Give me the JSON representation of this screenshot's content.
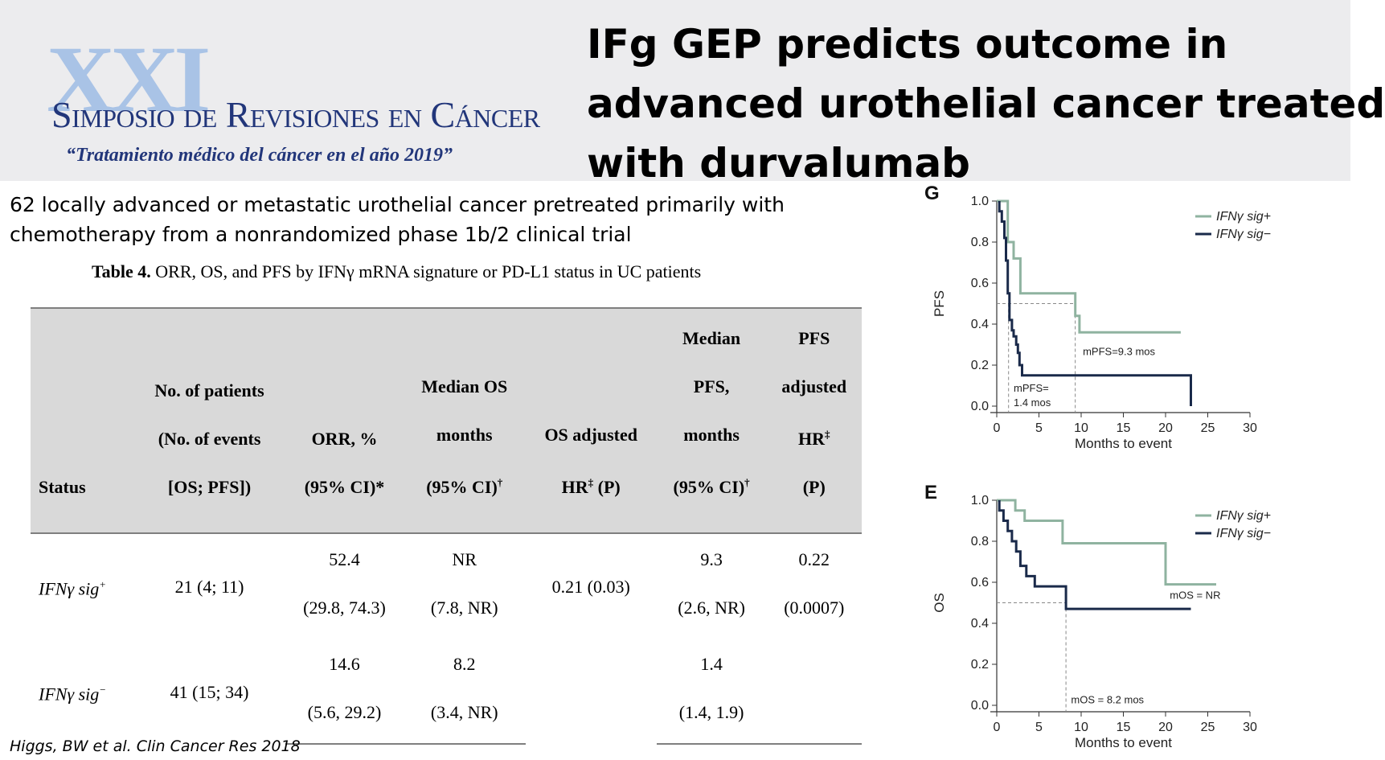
{
  "header": {
    "logo_big": "XXI",
    "logo_main": "Simposio de Revisiones en Cáncer",
    "logo_sub": "“Tratamiento médico del cáncer en el año 2019”",
    "title_lines": [
      "IFg GEP predicts outcome in",
      "advanced urothelial cancer treated",
      "with durvalumab"
    ]
  },
  "intro": {
    "lines": [
      "62 locally advanced or metastatic urothelial cancer pretreated primarily with",
      "chemotherapy  from a nonrandomized phase 1b/2 clinical trial"
    ]
  },
  "table": {
    "caption_bold": "Table 4.",
    "caption_rest": " ORR, OS, and PFS by IFNγ mRNA signature or PD-L1 status in UC patients",
    "headers": [
      {
        "lines": [
          "Status"
        ]
      },
      {
        "lines": [
          "No. of patients",
          "(No. of events",
          "[OS; PFS])"
        ]
      },
      {
        "lines": [
          "ORR, %",
          "(95% CI)*"
        ]
      },
      {
        "lines": [
          "Median OS",
          "months",
          "(95% CI)†"
        ]
      },
      {
        "lines": [
          "OS adjusted",
          "HR‡ (P)"
        ]
      },
      {
        "lines": [
          "Median",
          "PFS,",
          "months",
          "(95% CI)†"
        ]
      },
      {
        "lines": [
          "PFS",
          "adjusted",
          "HR‡",
          "(P)"
        ]
      }
    ],
    "rows": [
      {
        "status": "IFNγ sig",
        "status_sup": "+",
        "patients": "21 (4; 11)",
        "orr": "52.4",
        "orr_ci": "(29.8, 74.3)",
        "os": "NR",
        "os_ci": "(7.8, NR)",
        "os_hr": "0.21 (0.03)",
        "pfs": "9.3",
        "pfs_ci": "(2.6, NR)",
        "pfs_hr": "0.22",
        "pfs_p": "(0.0007)"
      },
      {
        "status": "IFNγ sig",
        "status_sup": "−",
        "patients": "41 (15; 34)",
        "orr": "14.6",
        "orr_ci": "(5.6, 29.2)",
        "os": "8.2",
        "os_ci": "(3.4, NR)",
        "os_hr": "",
        "pfs": "1.4",
        "pfs_ci": "(1.4, 1.9)",
        "pfs_hr": "",
        "pfs_p": ""
      }
    ]
  },
  "citation": "Higgs, BW et al. Clin Cancer Res 2018",
  "colors": {
    "sig_plus": "#8fb3a0",
    "sig_minus": "#1a2a4a",
    "header_bg": "#ececee",
    "table_header_bg": "#d9d9d9"
  },
  "chart_data": [
    {
      "type": "line",
      "panel": "G",
      "xlabel": "Months to event",
      "ylabel": "PFS",
      "xlim": [
        0,
        30
      ],
      "ylim": [
        0,
        1
      ],
      "xticks": [
        "0",
        "5",
        "10",
        "15",
        "20",
        "25",
        "30"
      ],
      "yticks": [
        "0.0",
        "0.2",
        "0.4",
        "0.6",
        "0.8",
        "1.0"
      ],
      "legend_position": "top-right",
      "series": [
        {
          "name": "IFNγ sig+",
          "color": "#8fb3a0",
          "x": [
            0,
            1.3,
            1.3,
            2.0,
            2.0,
            2.8,
            2.8,
            9.3,
            9.3,
            9.8,
            9.8,
            21.8
          ],
          "y": [
            1.0,
            1.0,
            0.8,
            0.8,
            0.72,
            0.72,
            0.55,
            0.55,
            0.44,
            0.44,
            0.36,
            0.36
          ]
        },
        {
          "name": "IFNγ sig−",
          "color": "#1a2a4a",
          "x": [
            0.3,
            0.3,
            0.6,
            0.6,
            0.9,
            0.9,
            1.1,
            1.1,
            1.3,
            1.3,
            1.5,
            1.5,
            1.8,
            1.8,
            2.0,
            2.0,
            2.3,
            2.3,
            2.5,
            2.5,
            2.7,
            2.7,
            3.0,
            3.0,
            23.0,
            23.0
          ],
          "y": [
            1.0,
            0.95,
            0.95,
            0.9,
            0.9,
            0.82,
            0.82,
            0.71,
            0.71,
            0.55,
            0.55,
            0.42,
            0.42,
            0.37,
            0.37,
            0.34,
            0.34,
            0.3,
            0.3,
            0.26,
            0.26,
            0.2,
            0.2,
            0.15,
            0.15,
            0.0
          ]
        }
      ],
      "reference": {
        "y": 0.5,
        "x_values": [
          1.4,
          9.3
        ]
      },
      "annotations": [
        {
          "text": "mPFS=9.3 mos",
          "x": 10.2,
          "y": 0.25
        },
        {
          "text": "mPFS=",
          "x": 2.0,
          "y": 0.07
        },
        {
          "text": "1.4 mos",
          "x": 2.0,
          "y": 0.0
        }
      ]
    },
    {
      "type": "line",
      "panel": "E",
      "xlabel": "Months to event",
      "ylabel": "OS",
      "xlim": [
        0,
        30
      ],
      "ylim": [
        0,
        1
      ],
      "xticks": [
        "0",
        "5",
        "10",
        "15",
        "20",
        "25",
        "30"
      ],
      "yticks": [
        "0.0",
        "0.2",
        "0.4",
        "0.6",
        "0.8",
        "1.0"
      ],
      "legend_position": "top-right",
      "series": [
        {
          "name": "IFNγ sig+",
          "color": "#8fb3a0",
          "x": [
            0,
            2.2,
            2.2,
            3.3,
            3.3,
            7.8,
            7.8,
            20.0,
            20.0,
            26.0
          ],
          "y": [
            1.0,
            1.0,
            0.95,
            0.95,
            0.9,
            0.9,
            0.79,
            0.79,
            0.59,
            0.59
          ]
        },
        {
          "name": "IFNγ sig−",
          "color": "#1a2a4a",
          "x": [
            0.3,
            0.3,
            0.8,
            0.8,
            1.3,
            1.3,
            1.8,
            1.8,
            2.3,
            2.3,
            2.8,
            2.8,
            3.5,
            3.5,
            4.5,
            4.5,
            8.2,
            8.2,
            23.0
          ],
          "y": [
            1.0,
            0.95,
            0.95,
            0.9,
            0.9,
            0.85,
            0.85,
            0.8,
            0.8,
            0.75,
            0.75,
            0.68,
            0.68,
            0.63,
            0.63,
            0.58,
            0.58,
            0.47,
            0.47
          ]
        }
      ],
      "reference": {
        "y": 0.5,
        "x_values": [
          8.2
        ]
      },
      "annotations": [
        {
          "text": "mOS = NR",
          "x": 20.5,
          "y": 0.52
        },
        {
          "text": "mOS = 8.2 mos",
          "x": 8.8,
          "y": 0.01
        }
      ]
    }
  ]
}
